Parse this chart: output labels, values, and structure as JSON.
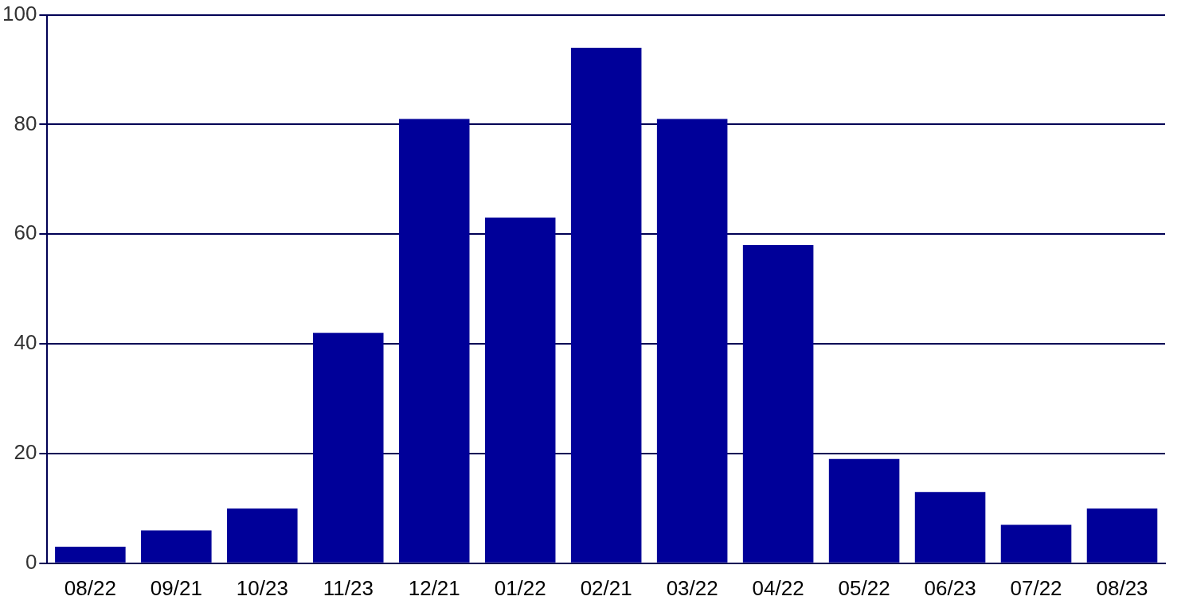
{
  "chart_data": {
    "type": "bar",
    "categories": [
      "08/22",
      "09/21",
      "10/23",
      "11/23",
      "12/21",
      "01/22",
      "02/21",
      "03/22",
      "04/22",
      "05/22",
      "06/23",
      "07/22",
      "08/23"
    ],
    "values": [
      3,
      6,
      10,
      42,
      81,
      63,
      94,
      81,
      58,
      19,
      13,
      7,
      10
    ],
    "color": "#000099",
    "ylim": [
      0,
      100
    ],
    "yticks": [
      0,
      20,
      40,
      60,
      80,
      100
    ],
    "grid": "y"
  }
}
